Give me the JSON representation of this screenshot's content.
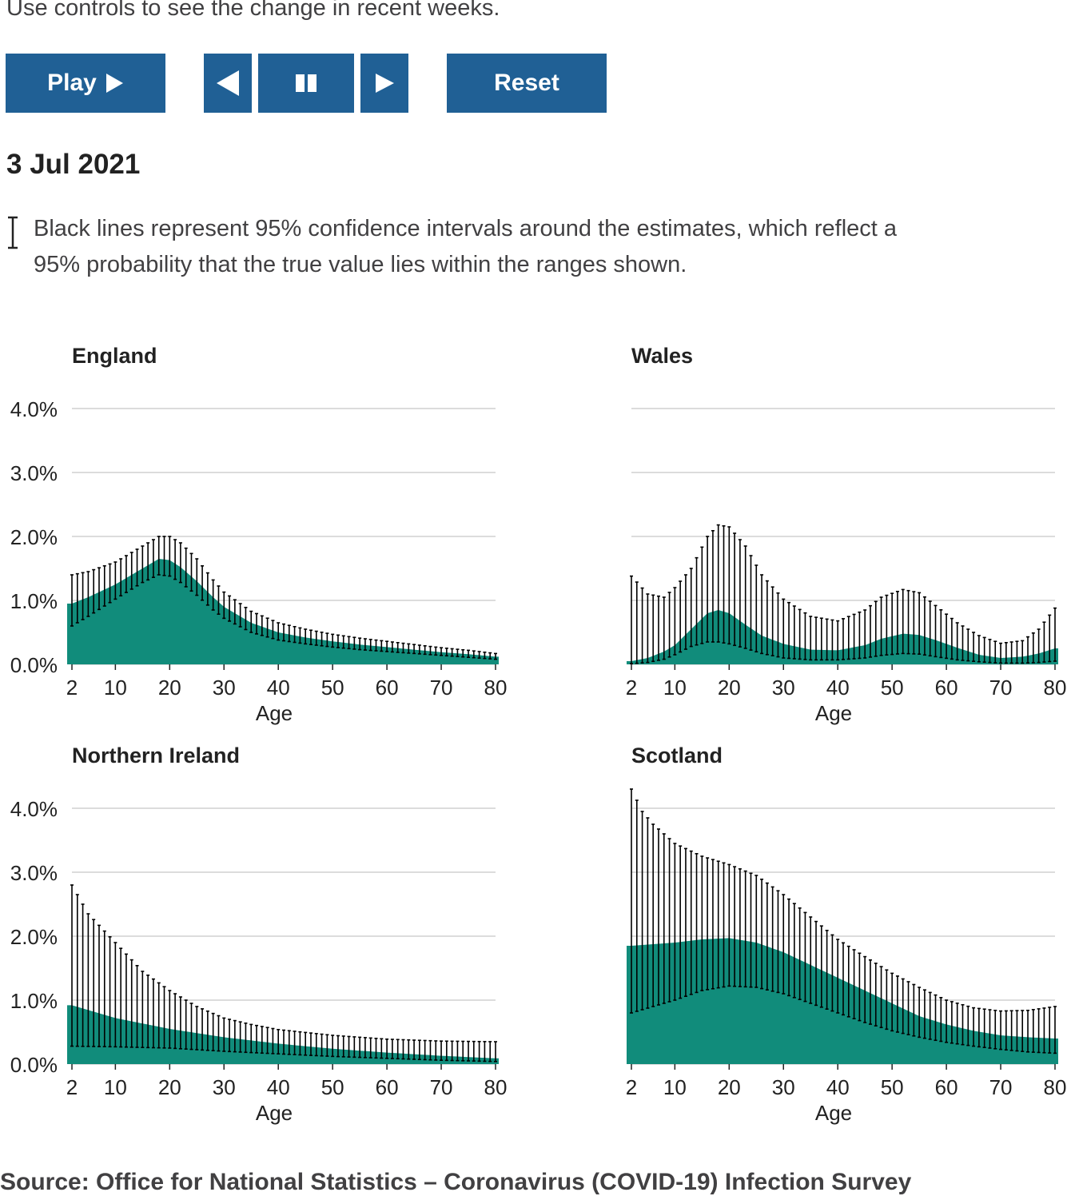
{
  "intro_text": "Use controls to see the change in recent weeks.",
  "controls": {
    "play_label": "Play",
    "play_icon": "play-triangle-icon",
    "back_icon": "step-back-icon",
    "pause_icon": "pause-icon",
    "forward_icon": "step-forward-icon",
    "reset_label": "Reset",
    "button_color": "#206095"
  },
  "date": "3 Jul 2021",
  "ci_note": "Black lines represent 95% confidence intervals around the estimates, which reflect a 95% probability that the true value lies within the ranges shown.",
  "source": "Source: Office for National Statistics – Coronavirus (COVID-19) Infection Survey",
  "colors": {
    "area": "#118c7b",
    "ci": "#000000",
    "grid": "#d0d0d0"
  },
  "chart_data": [
    {
      "type": "area",
      "title": "England",
      "xlabel": "Age",
      "ylabel": "",
      "xlim": [
        2,
        80
      ],
      "ylim": [
        0,
        4
      ],
      "x_ticks": [
        "2",
        "10",
        "20",
        "30",
        "40",
        "50",
        "60",
        "70",
        "80"
      ],
      "y_ticks": [
        "0.0%",
        "1.0%",
        "2.0%",
        "3.0%",
        "4.0%"
      ],
      "grid": true,
      "ci_every_years": 1,
      "series": [
        {
          "role": "estimate",
          "x": [
            2,
            5,
            10,
            15,
            18,
            20,
            22,
            25,
            28,
            30,
            35,
            40,
            45,
            50,
            55,
            60,
            65,
            70,
            75,
            80
          ],
          "values": [
            0.95,
            1.05,
            1.25,
            1.5,
            1.65,
            1.63,
            1.52,
            1.3,
            1.05,
            0.9,
            0.65,
            0.5,
            0.42,
            0.36,
            0.31,
            0.27,
            0.23,
            0.19,
            0.16,
            0.12
          ]
        },
        {
          "role": "lower",
          "x": [
            2,
            5,
            10,
            15,
            18,
            20,
            22,
            25,
            28,
            30,
            35,
            40,
            45,
            50,
            55,
            60,
            65,
            70,
            75,
            80
          ],
          "values": [
            0.6,
            0.75,
            1.02,
            1.28,
            1.4,
            1.38,
            1.28,
            1.08,
            0.85,
            0.72,
            0.5,
            0.38,
            0.32,
            0.27,
            0.23,
            0.2,
            0.17,
            0.14,
            0.11,
            0.08
          ]
        },
        {
          "role": "upper",
          "x": [
            2,
            5,
            10,
            15,
            18,
            20,
            22,
            25,
            28,
            30,
            35,
            40,
            45,
            50,
            55,
            60,
            65,
            70,
            75,
            80
          ],
          "values": [
            1.4,
            1.45,
            1.6,
            1.85,
            2.0,
            2.0,
            1.9,
            1.65,
            1.32,
            1.13,
            0.83,
            0.65,
            0.55,
            0.47,
            0.41,
            0.36,
            0.31,
            0.26,
            0.22,
            0.17
          ]
        }
      ]
    },
    {
      "type": "area",
      "title": "Wales",
      "xlabel": "Age",
      "ylabel": "",
      "xlim": [
        2,
        80
      ],
      "ylim": [
        0,
        4
      ],
      "x_ticks": [
        "2",
        "10",
        "20",
        "30",
        "40",
        "50",
        "60",
        "70",
        "80"
      ],
      "y_ticks": [
        "0.0%",
        "1.0%",
        "2.0%",
        "3.0%",
        "4.0%"
      ],
      "grid": true,
      "ci_every_years": 1,
      "series": [
        {
          "role": "estimate",
          "x": [
            2,
            5,
            8,
            10,
            13,
            16,
            18,
            20,
            23,
            26,
            30,
            35,
            40,
            45,
            48,
            52,
            55,
            58,
            62,
            66,
            70,
            74,
            77,
            80
          ],
          "values": [
            0.05,
            0.1,
            0.2,
            0.3,
            0.55,
            0.8,
            0.85,
            0.8,
            0.62,
            0.45,
            0.32,
            0.23,
            0.22,
            0.3,
            0.4,
            0.48,
            0.46,
            0.38,
            0.26,
            0.15,
            0.1,
            0.12,
            0.17,
            0.25
          ]
        },
        {
          "role": "lower",
          "x": [
            2,
            5,
            8,
            10,
            13,
            16,
            18,
            20,
            23,
            26,
            30,
            35,
            40,
            45,
            48,
            52,
            55,
            58,
            62,
            66,
            70,
            74,
            77,
            80
          ],
          "values": [
            0.01,
            0.03,
            0.08,
            0.15,
            0.28,
            0.35,
            0.35,
            0.32,
            0.25,
            0.17,
            0.1,
            0.07,
            0.07,
            0.1,
            0.14,
            0.17,
            0.16,
            0.12,
            0.07,
            0.04,
            0.02,
            0.02,
            0.03,
            0.05
          ]
        },
        {
          "role": "upper",
          "x": [
            2,
            5,
            8,
            10,
            13,
            16,
            18,
            20,
            23,
            26,
            30,
            35,
            40,
            45,
            48,
            52,
            55,
            58,
            62,
            66,
            70,
            74,
            77,
            80
          ],
          "values": [
            1.38,
            1.1,
            1.05,
            1.2,
            1.5,
            2.0,
            2.18,
            2.15,
            1.85,
            1.4,
            1.02,
            0.75,
            0.68,
            0.85,
            1.05,
            1.17,
            1.12,
            0.92,
            0.65,
            0.45,
            0.33,
            0.37,
            0.55,
            0.88
          ]
        }
      ]
    },
    {
      "type": "area",
      "title": "Northern Ireland",
      "xlabel": "Age",
      "ylabel": "",
      "xlim": [
        2,
        80
      ],
      "ylim": [
        0,
        4
      ],
      "x_ticks": [
        "2",
        "10",
        "20",
        "30",
        "40",
        "50",
        "60",
        "70",
        "80"
      ],
      "y_ticks": [
        "0.0%",
        "1.0%",
        "2.0%",
        "3.0%",
        "4.0%"
      ],
      "grid": true,
      "ci_every_years": 1,
      "series": [
        {
          "role": "estimate",
          "x": [
            2,
            10,
            20,
            30,
            40,
            50,
            60,
            70,
            80
          ],
          "values": [
            0.92,
            0.72,
            0.55,
            0.42,
            0.32,
            0.24,
            0.18,
            0.13,
            0.09
          ]
        },
        {
          "role": "lower",
          "x": [
            2,
            10,
            20,
            30,
            40,
            50,
            60,
            70,
            80
          ],
          "values": [
            0.28,
            0.27,
            0.25,
            0.2,
            0.16,
            0.12,
            0.09,
            0.06,
            0.04
          ]
        },
        {
          "role": "upper",
          "x": [
            2,
            5,
            10,
            15,
            20,
            25,
            30,
            35,
            40,
            50,
            60,
            70,
            80
          ],
          "values": [
            2.8,
            2.35,
            1.9,
            1.45,
            1.15,
            0.9,
            0.72,
            0.62,
            0.54,
            0.45,
            0.39,
            0.36,
            0.35
          ]
        }
      ]
    },
    {
      "type": "area",
      "title": "Scotland",
      "xlabel": "Age",
      "ylabel": "",
      "xlim": [
        2,
        80
      ],
      "ylim": [
        0,
        4
      ],
      "x_ticks": [
        "2",
        "10",
        "20",
        "30",
        "40",
        "50",
        "60",
        "70",
        "80"
      ],
      "y_ticks": [
        "0.0%",
        "1.0%",
        "2.0%",
        "3.0%",
        "4.0%"
      ],
      "grid": true,
      "ci_every_years": 1,
      "series": [
        {
          "role": "estimate",
          "x": [
            2,
            10,
            15,
            20,
            25,
            30,
            35,
            40,
            45,
            50,
            55,
            60,
            65,
            70,
            75,
            80
          ],
          "values": [
            1.85,
            1.9,
            1.95,
            1.97,
            1.9,
            1.75,
            1.55,
            1.35,
            1.15,
            0.95,
            0.75,
            0.62,
            0.52,
            0.45,
            0.42,
            0.4
          ]
        },
        {
          "role": "lower",
          "x": [
            2,
            10,
            15,
            20,
            25,
            30,
            35,
            40,
            45,
            50,
            55,
            60,
            65,
            70,
            75,
            80
          ],
          "values": [
            0.8,
            1.0,
            1.15,
            1.22,
            1.2,
            1.1,
            0.95,
            0.8,
            0.65,
            0.52,
            0.42,
            0.34,
            0.28,
            0.23,
            0.19,
            0.17
          ]
        },
        {
          "role": "upper",
          "x": [
            2,
            4,
            6,
            10,
            15,
            20,
            25,
            30,
            35,
            40,
            45,
            50,
            55,
            60,
            65,
            70,
            75,
            80
          ],
          "values": [
            4.3,
            3.95,
            3.75,
            3.45,
            3.25,
            3.12,
            2.95,
            2.65,
            2.3,
            1.95,
            1.68,
            1.42,
            1.2,
            1.0,
            0.88,
            0.83,
            0.84,
            0.9
          ]
        }
      ]
    }
  ]
}
